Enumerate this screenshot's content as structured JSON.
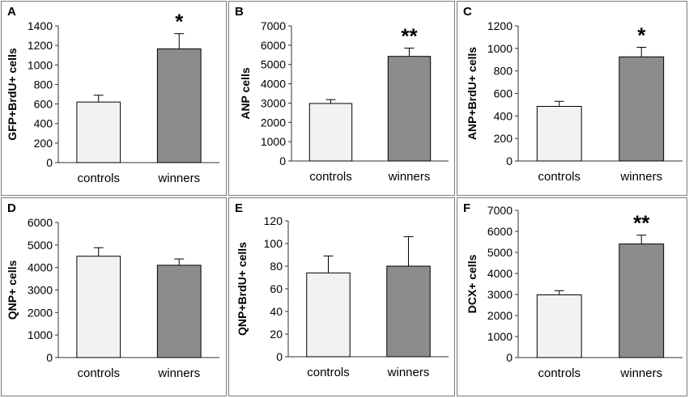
{
  "colors": {
    "controls_fill": "#f2f2f2",
    "winners_fill": "#8c8c8c",
    "bar_stroke": "#000000"
  },
  "chart_data": [
    {
      "panel": "A",
      "type": "bar",
      "ylabel": "GFP+BrdU+ cells",
      "categories": [
        "controls",
        "winners"
      ],
      "values": [
        620,
        1165
      ],
      "errors": [
        70,
        155
      ],
      "ylim": [
        0,
        1400
      ],
      "yticks": [
        0,
        200,
        400,
        600,
        800,
        1000,
        1200,
        1400
      ],
      "significance": [
        "",
        "*"
      ]
    },
    {
      "panel": "B",
      "type": "bar",
      "ylabel": "ANP cells",
      "categories": [
        "controls",
        "winners"
      ],
      "values": [
        2980,
        5420
      ],
      "errors": [
        200,
        430
      ],
      "ylim": [
        0,
        7000
      ],
      "yticks": [
        0,
        1000,
        2000,
        3000,
        4000,
        5000,
        6000,
        7000
      ],
      "significance": [
        "",
        "**"
      ]
    },
    {
      "panel": "C",
      "type": "bar",
      "ylabel": "ANP+BrdU+ cells",
      "categories": [
        "controls",
        "winners"
      ],
      "values": [
        485,
        925
      ],
      "errors": [
        45,
        85
      ],
      "ylim": [
        0,
        1200
      ],
      "yticks": [
        0,
        200,
        400,
        600,
        800,
        1000,
        1200
      ],
      "significance": [
        "",
        "*"
      ]
    },
    {
      "panel": "D",
      "type": "bar",
      "ylabel": "QNP+ cells",
      "categories": [
        "controls",
        "winners"
      ],
      "values": [
        4500,
        4100
      ],
      "errors": [
        380,
        280
      ],
      "ylim": [
        0,
        6000
      ],
      "yticks": [
        0,
        1000,
        2000,
        3000,
        4000,
        5000,
        6000
      ],
      "significance": [
        "",
        ""
      ]
    },
    {
      "panel": "E",
      "type": "bar",
      "ylabel": "QNP+BrdU+ cells",
      "categories": [
        "controls",
        "winners"
      ],
      "values": [
        74,
        80
      ],
      "errors": [
        15,
        26
      ],
      "ylim": [
        0,
        120
      ],
      "yticks": [
        0,
        20,
        40,
        60,
        80,
        100,
        120
      ],
      "significance": [
        "",
        ""
      ]
    },
    {
      "panel": "F",
      "type": "bar",
      "ylabel": "DCX+ cells",
      "categories": [
        "controls",
        "winners"
      ],
      "values": [
        2980,
        5400
      ],
      "errors": [
        200,
        420
      ],
      "ylim": [
        0,
        7000
      ],
      "yticks": [
        0,
        1000,
        2000,
        3000,
        4000,
        5000,
        6000,
        7000
      ],
      "significance": [
        "",
        "**"
      ]
    }
  ]
}
